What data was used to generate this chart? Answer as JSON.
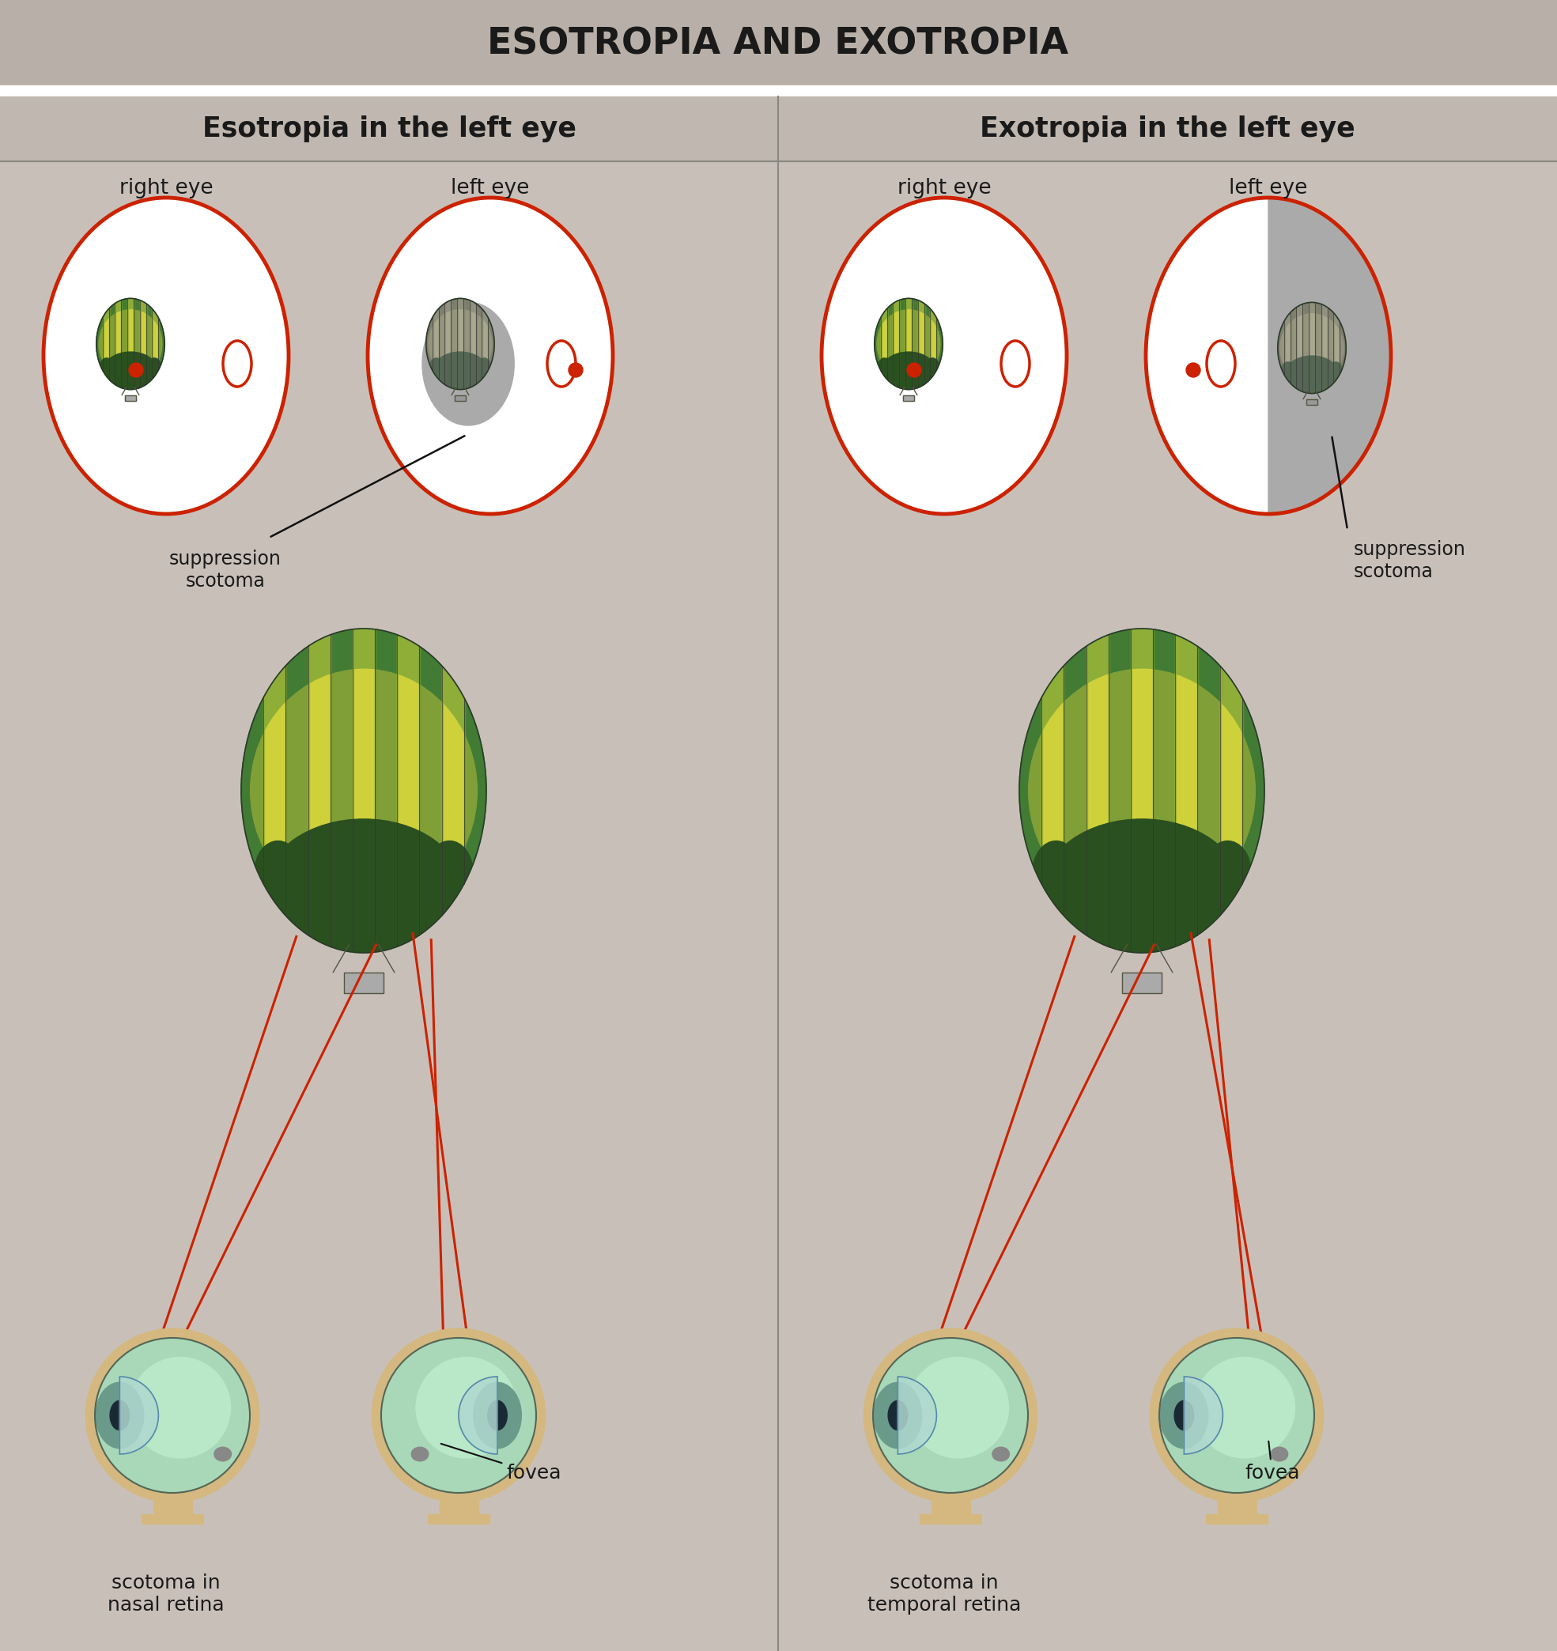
{
  "title": "ESOTROPIA AND EXOTROPIA",
  "title_bg": "#b8b0a8",
  "panel_bg": "#c8c0b8",
  "header_bg": "#c0b8b0",
  "left_panel_title": "Esotropia in the left eye",
  "right_panel_title": "Exotropia in the left eye",
  "text_color": "#1a1a1a",
  "red_color": "#cc2200",
  "balloon_green_dark": "#2d6b2d",
  "balloon_green_mid": "#4a8a3a",
  "balloon_yellow": "#d8d840",
  "balloon_stripe_g": "#3a7030",
  "balloon_stripe_y": "#c8cc38",
  "balloon_bottom": "#2a5020",
  "basket_color": "#aaaaaa",
  "scotoma_gray": "#aaaaaa",
  "scotoma_dark": "#999999",
  "eye_field_white": "#ffffff",
  "eye_skin": "#d4b880",
  "eye_green_light": "#a8d8b8",
  "eye_green_mid": "#88c8a8",
  "iris_color": "#6a9a8a",
  "pupil_color": "#1a2a35",
  "cornea_color": "#b0d8d0",
  "divider_color": "#888880",
  "rope_color": "#666655"
}
